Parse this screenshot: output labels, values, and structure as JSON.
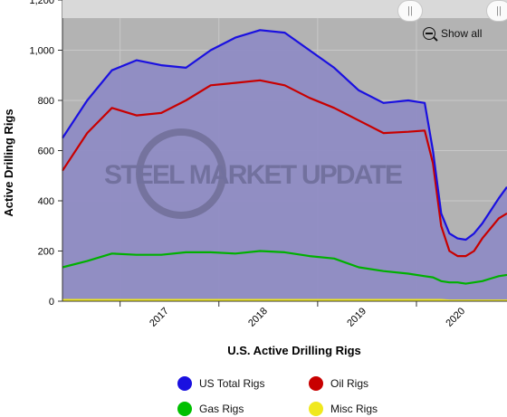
{
  "chart_data": {
    "type": "area",
    "xlabel": "U.S. Active Drilling Rigs",
    "ylabel": "Active Drilling Rigs",
    "ylim": [
      0,
      1200
    ],
    "xlim": [
      "2016-06",
      "2020-12"
    ],
    "x_tick_labels": [
      "2017",
      "2018",
      "2019",
      "2020"
    ],
    "y_tick_labels": [
      "0",
      "200",
      "400",
      "600",
      "800",
      "1,000",
      "1,200"
    ],
    "grid": true,
    "legend_position": "bottom",
    "watermark": "STEEL MARKET UPDATE",
    "x": [
      "2016-06",
      "2016-09",
      "2016-12",
      "2017-03",
      "2017-06",
      "2017-09",
      "2017-12",
      "2018-03",
      "2018-06",
      "2018-09",
      "2018-12",
      "2019-03",
      "2019-06",
      "2019-09",
      "2019-12",
      "2020-02",
      "2020-03",
      "2020-04",
      "2020-05",
      "2020-06",
      "2020-07",
      "2020-08",
      "2020-09",
      "2020-10",
      "2020-11",
      "2020-12"
    ],
    "series": [
      {
        "name": "US Total Rigs",
        "color": "#1a10e0",
        "values": [
          650,
          800,
          920,
          960,
          940,
          930,
          1000,
          1050,
          1080,
          1070,
          1000,
          930,
          840,
          790,
          800,
          790,
          600,
          350,
          270,
          250,
          245,
          270,
          310,
          360,
          410,
          455
        ]
      },
      {
        "name": "Oil Rigs",
        "color": "#c80000",
        "values": [
          520,
          670,
          770,
          740,
          750,
          800,
          860,
          870,
          880,
          860,
          810,
          770,
          720,
          670,
          675,
          680,
          550,
          300,
          200,
          180,
          180,
          200,
          250,
          290,
          330,
          350
        ]
      },
      {
        "name": "Gas Rigs",
        "color": "#00b000",
        "values": [
          135,
          160,
          190,
          185,
          185,
          195,
          195,
          190,
          200,
          195,
          180,
          170,
          135,
          120,
          110,
          100,
          95,
          80,
          75,
          75,
          70,
          75,
          80,
          90,
          100,
          105
        ]
      },
      {
        "name": "Misc Rigs",
        "color": "#f0e81e",
        "values": [
          5,
          5,
          5,
          5,
          5,
          5,
          5,
          5,
          5,
          5,
          5,
          5,
          5,
          5,
          5,
          5,
          5,
          5,
          3,
          3,
          3,
          3,
          3,
          3,
          3,
          3
        ]
      }
    ]
  },
  "navigator": {
    "show_all_label": "Show all"
  }
}
